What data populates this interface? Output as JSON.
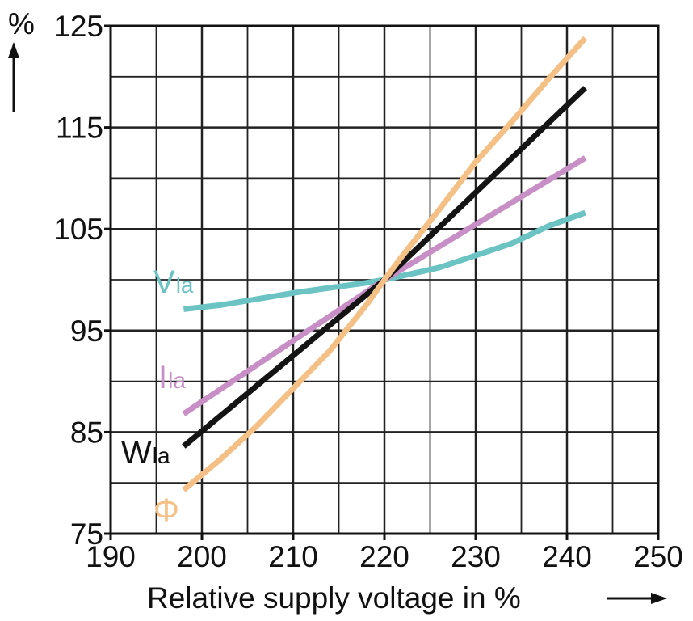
{
  "chart_data": {
    "type": "line",
    "title": "",
    "xlabel": "Relative supply voltage in %",
    "ylabel": "%",
    "xlim": [
      190,
      250
    ],
    "ylim": [
      75,
      125
    ],
    "x_ticks": [
      190,
      200,
      210,
      220,
      230,
      240,
      250
    ],
    "y_ticks": [
      75,
      85,
      95,
      105,
      115,
      125
    ],
    "grid": true,
    "x_grid_step": 5,
    "y_grid_step": 5,
    "series": [
      {
        "name": "Vla",
        "label_main": "V",
        "label_sub": "la",
        "color": "#6cc3c3",
        "points": [
          [
            198,
            97.1
          ],
          [
            202,
            97.5
          ],
          [
            206,
            98.1
          ],
          [
            210,
            98.7
          ],
          [
            214,
            99.2
          ],
          [
            218,
            99.7
          ],
          [
            220,
            100
          ],
          [
            222,
            100.4
          ],
          [
            226,
            101.2
          ],
          [
            230,
            102.4
          ],
          [
            234,
            103.6
          ],
          [
            238,
            105.3
          ],
          [
            242,
            106.6
          ]
        ]
      },
      {
        "name": "Ila",
        "label_main": "I",
        "label_sub": "la",
        "color": "#c88ec6",
        "points": [
          [
            198,
            86.8
          ],
          [
            220,
            100
          ],
          [
            242,
            112
          ]
        ]
      },
      {
        "name": "Wla",
        "label_main": "W",
        "label_sub": "la",
        "color": "#141414",
        "points": [
          [
            198,
            83.6
          ],
          [
            220,
            100
          ],
          [
            242,
            118.9
          ]
        ]
      },
      {
        "name": "Φ",
        "label_main": "Φ",
        "label_sub": "",
        "color": "#f4c085",
        "points": [
          [
            198,
            79.3
          ],
          [
            202,
            82.3
          ],
          [
            206,
            85.6
          ],
          [
            210,
            89.3
          ],
          [
            214,
            93
          ],
          [
            218,
            97.5
          ],
          [
            220,
            100
          ],
          [
            222,
            102.4
          ],
          [
            226,
            106.9
          ],
          [
            230,
            111.6
          ],
          [
            234,
            115.6
          ],
          [
            238,
            119.8
          ],
          [
            242,
            123.8
          ]
        ]
      }
    ]
  }
}
